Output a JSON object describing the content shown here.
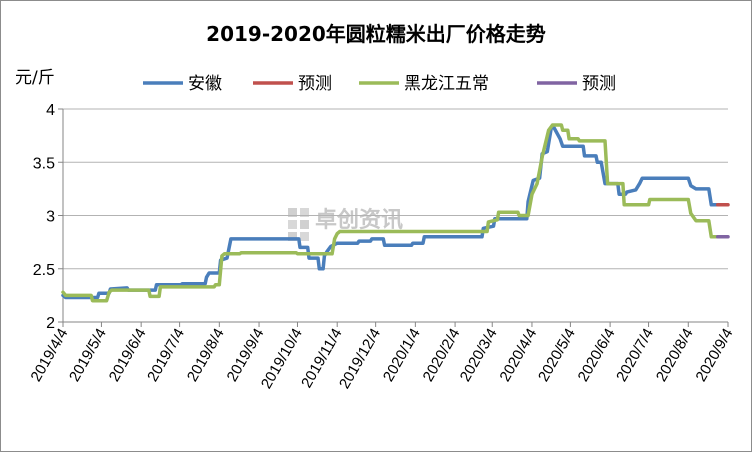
{
  "chart_data": {
    "type": "line",
    "title": "2019-2020年圆粒糯米出厂价格走势",
    "ylabel": "元/斤",
    "ylim": [
      2,
      4
    ],
    "yticks": [
      "2",
      "2.5",
      "3",
      "3.5",
      "4"
    ],
    "grid": "horizontal",
    "legend_position": "top",
    "watermark": "卓创资讯",
    "xticks": [
      "2019/4/4",
      "2019/5/4",
      "2019/6/4",
      "2019/7/4",
      "2019/8/4",
      "2019/9/4",
      "2019/10/4",
      "2019/11/4",
      "2019/12/4",
      "2020/1/4",
      "2020/2/4",
      "2020/3/4",
      "2020/4/4",
      "2020/5/4",
      "2020/6/4",
      "2020/7/4",
      "2020/8/4",
      "2020/9/4"
    ],
    "series": [
      {
        "name": "安徽",
        "color": "#4a7ebb",
        "points": [
          [
            "2019/4/4",
            2.25
          ],
          [
            "2019/4/6",
            2.23
          ],
          [
            "2019/5/1",
            2.23
          ],
          [
            "2019/5/2",
            2.27
          ],
          [
            "2019/5/10",
            2.27
          ],
          [
            "2019/5/11",
            2.31
          ],
          [
            "2019/5/24",
            2.32
          ],
          [
            "2019/5/25",
            2.3
          ],
          [
            "2019/6/15",
            2.3
          ],
          [
            "2019/6/16",
            2.35
          ],
          [
            "2019/7/5",
            2.35
          ],
          [
            "2019/7/6",
            2.36
          ],
          [
            "2019/7/24",
            2.36
          ],
          [
            "2019/7/25",
            2.42
          ],
          [
            "2019/7/27",
            2.46
          ],
          [
            "2019/8/4",
            2.46
          ],
          [
            "2019/8/5",
            2.58
          ],
          [
            "2019/8/10",
            2.6
          ],
          [
            "2019/8/13",
            2.78
          ],
          [
            "2019/10/5",
            2.78
          ],
          [
            "2019/10/6",
            2.7
          ],
          [
            "2019/10/12",
            2.7
          ],
          [
            "2019/10/13",
            2.6
          ],
          [
            "2019/10/20",
            2.6
          ],
          [
            "2019/10/21",
            2.5
          ],
          [
            "2019/10/24",
            2.5
          ],
          [
            "2019/10/25",
            2.62
          ],
          [
            "2019/10/27",
            2.66
          ],
          [
            "2019/10/30",
            2.71
          ],
          [
            "2019/11/4",
            2.74
          ],
          [
            "2019/11/20",
            2.74
          ],
          [
            "2019/11/21",
            2.76
          ],
          [
            "2019/11/30",
            2.76
          ],
          [
            "2019/12/1",
            2.78
          ],
          [
            "2019/12/10",
            2.78
          ],
          [
            "2019/12/11",
            2.72
          ],
          [
            "2020/1/1",
            2.72
          ],
          [
            "2020/1/2",
            2.74
          ],
          [
            "2020/1/10",
            2.74
          ],
          [
            "2020/1/11",
            2.8
          ],
          [
            "2020/2/25",
            2.8
          ],
          [
            "2020/2/26",
            2.88
          ],
          [
            "2020/3/5",
            2.9
          ],
          [
            "2020/3/6",
            2.97
          ],
          [
            "2020/3/31",
            2.97
          ],
          [
            "2020/4/1",
            3.13
          ],
          [
            "2020/4/5",
            3.33
          ],
          [
            "2020/4/10",
            3.35
          ],
          [
            "2020/4/12",
            3.58
          ],
          [
            "2020/4/16",
            3.6
          ],
          [
            "2020/4/19",
            3.82
          ],
          [
            "2020/4/21",
            3.83
          ],
          [
            "2020/4/26",
            3.72
          ],
          [
            "2020/4/28",
            3.65
          ],
          [
            "2020/5/14",
            3.65
          ],
          [
            "2020/5/15",
            3.56
          ],
          [
            "2020/5/24",
            3.56
          ],
          [
            "2020/5/25",
            3.5
          ],
          [
            "2020/5/28",
            3.5
          ],
          [
            "2020/5/31",
            3.3
          ],
          [
            "2020/6/10",
            3.3
          ],
          [
            "2020/6/11",
            3.2
          ],
          [
            "2020/6/16",
            3.2
          ],
          [
            "2020/6/17",
            3.22
          ],
          [
            "2020/6/24",
            3.24
          ],
          [
            "2020/6/27",
            3.3
          ],
          [
            "2020/6/29",
            3.35
          ],
          [
            "2020/8/4",
            3.35
          ],
          [
            "2020/8/6",
            3.28
          ],
          [
            "2020/8/10",
            3.25
          ],
          [
            "2020/8/20",
            3.25
          ],
          [
            "2020/8/22",
            3.1
          ],
          [
            "2020/8/27",
            3.1
          ]
        ]
      },
      {
        "name": "预测",
        "color": "#c0504d",
        "points": [
          [
            "2020/8/27",
            3.1
          ],
          [
            "2020/9/4",
            3.1
          ]
        ]
      },
      {
        "name": "黑龙江五常",
        "color": "#9bbb59",
        "points": [
          [
            "2019/4/4",
            2.28
          ],
          [
            "2019/4/6",
            2.25
          ],
          [
            "2019/4/26",
            2.25
          ],
          [
            "2019/4/27",
            2.2
          ],
          [
            "2019/5/8",
            2.2
          ],
          [
            "2019/5/10",
            2.28
          ],
          [
            "2019/5/12",
            2.3
          ],
          [
            "2019/6/10",
            2.3
          ],
          [
            "2019/6/11",
            2.24
          ],
          [
            "2019/6/18",
            2.24
          ],
          [
            "2019/6/19",
            2.33
          ],
          [
            "2019/7/31",
            2.33
          ],
          [
            "2019/8/1",
            2.35
          ],
          [
            "2019/8/4",
            2.35
          ],
          [
            "2019/8/6",
            2.62
          ],
          [
            "2019/8/8",
            2.64
          ],
          [
            "2019/8/20",
            2.64
          ],
          [
            "2019/8/21",
            2.65
          ],
          [
            "2019/10/3",
            2.65
          ],
          [
            "2019/10/4",
            2.64
          ],
          [
            "2019/10/31",
            2.64
          ],
          [
            "2019/11/2",
            2.78
          ],
          [
            "2019/11/4",
            2.83
          ],
          [
            "2019/11/6",
            2.85
          ],
          [
            "2020/2/29",
            2.85
          ],
          [
            "2020/3/1",
            2.94
          ],
          [
            "2020/3/8",
            2.96
          ],
          [
            "2020/3/9",
            3.03
          ],
          [
            "2020/3/24",
            3.03
          ],
          [
            "2020/3/25",
            3.0
          ],
          [
            "2020/4/1",
            3.0
          ],
          [
            "2020/4/4",
            3.2
          ],
          [
            "2020/4/8",
            3.3
          ],
          [
            "2020/4/12",
            3.55
          ],
          [
            "2020/4/17",
            3.8
          ],
          [
            "2020/4/20",
            3.85
          ],
          [
            "2020/4/27",
            3.85
          ],
          [
            "2020/4/28",
            3.8
          ],
          [
            "2020/5/2",
            3.8
          ],
          [
            "2020/5/3",
            3.72
          ],
          [
            "2020/5/10",
            3.72
          ],
          [
            "2020/5/11",
            3.7
          ],
          [
            "2020/5/31",
            3.7
          ],
          [
            "2020/6/2",
            3.3
          ],
          [
            "2020/6/14",
            3.3
          ],
          [
            "2020/6/15",
            3.1
          ],
          [
            "2020/7/4",
            3.1
          ],
          [
            "2020/7/5",
            3.15
          ],
          [
            "2020/8/4",
            3.15
          ],
          [
            "2020/8/6",
            3.02
          ],
          [
            "2020/8/10",
            2.95
          ],
          [
            "2020/8/20",
            2.95
          ],
          [
            "2020/8/22",
            2.8
          ],
          [
            "2020/8/27",
            2.8
          ]
        ]
      },
      {
        "name": "预测",
        "color": "#8064a2",
        "points": [
          [
            "2020/8/27",
            2.8
          ],
          [
            "2020/9/4",
            2.8
          ]
        ]
      }
    ]
  }
}
